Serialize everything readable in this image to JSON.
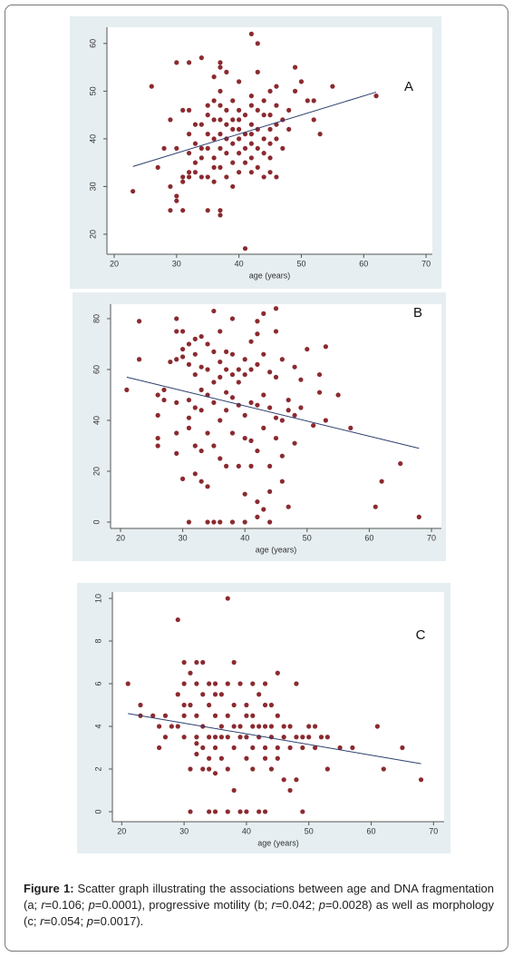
{
  "chart_data": [
    {
      "type": "scatter",
      "annotation": "A",
      "xlabel": "age (years)",
      "color": "#8b2a2f",
      "xlim": [
        18.84,
        71.0
      ],
      "ylim": [
        15.8,
        63.4
      ],
      "xticks": [
        20,
        30,
        40,
        50,
        60,
        70
      ],
      "yticks": [
        20,
        30,
        40,
        50,
        60
      ],
      "x": [
        23,
        26,
        27,
        28,
        29,
        29,
        29,
        30,
        30,
        30,
        30,
        31,
        31,
        31,
        31,
        32,
        32,
        32,
        32,
        32,
        32,
        33,
        33,
        33,
        33,
        34,
        34,
        34,
        34,
        34,
        35,
        35,
        35,
        35,
        35,
        35,
        36,
        36,
        36,
        36,
        36,
        36,
        36,
        37,
        37,
        37,
        37,
        37,
        37,
        37,
        37,
        37,
        37,
        38,
        38,
        38,
        38,
        38,
        38,
        39,
        39,
        39,
        39,
        39,
        39,
        40,
        40,
        40,
        40,
        40,
        40,
        40,
        41,
        41,
        41,
        41,
        41,
        42,
        42,
        42,
        42,
        42,
        42,
        42,
        42,
        43,
        43,
        43,
        43,
        43,
        43,
        44,
        44,
        44,
        44,
        44,
        45,
        45,
        45,
        45,
        45,
        45,
        46,
        46,
        46,
        46,
        46,
        47,
        47,
        48,
        48,
        49,
        49,
        50,
        51,
        52,
        52,
        53,
        55,
        62
      ],
      "values": [
        29,
        51,
        34,
        38,
        44,
        25,
        30,
        56,
        38,
        28,
        27,
        46,
        32,
        31,
        25,
        56,
        46,
        41,
        37,
        33,
        32,
        43,
        39,
        35,
        33,
        57,
        43,
        38,
        36,
        32,
        47,
        45,
        41,
        38,
        32,
        25,
        53,
        48,
        44,
        40,
        36,
        34,
        31,
        56,
        55,
        50,
        47,
        44,
        41,
        38,
        34,
        25,
        24,
        54,
        46,
        43,
        40,
        37,
        32,
        48,
        44,
        42,
        39,
        35,
        30,
        52,
        46,
        44,
        42,
        40,
        37,
        33,
        45,
        41,
        38,
        35,
        17,
        62,
        49,
        47,
        43,
        41,
        39,
        36,
        33,
        60,
        54,
        46,
        42,
        38,
        34,
        48,
        45,
        40,
        37,
        32,
        50,
        45,
        42,
        39,
        36,
        33,
        51,
        47,
        43,
        40,
        32,
        44,
        38,
        46,
        42,
        55,
        50,
        52,
        48,
        44,
        48,
        41,
        51,
        49
      ],
      "fit_line": {
        "x": [
          23,
          62
        ],
        "values": [
          34.2,
          49.8
        ],
        "color": "#2d3f6e"
      }
    },
    {
      "type": "scatter",
      "annotation": "B",
      "xlabel": "age (years)",
      "color": "#8b2a2f",
      "xlim": [
        18.4,
        71.6
      ],
      "ylim": [
        -2.5,
        85.7
      ],
      "xticks": [
        20,
        30,
        40,
        50,
        60,
        70
      ],
      "yticks": [
        0,
        20,
        40,
        60,
        80
      ],
      "x": [
        21,
        23,
        23,
        26,
        26,
        26,
        26,
        27,
        27,
        28,
        29,
        29,
        29,
        29,
        29,
        29,
        30,
        30,
        30,
        30,
        31,
        31,
        31,
        31,
        31,
        31,
        32,
        32,
        32,
        32,
        32,
        32,
        33,
        33,
        33,
        33,
        33,
        33,
        34,
        34,
        34,
        34,
        34,
        34,
        35,
        35,
        35,
        35,
        35,
        35,
        36,
        36,
        36,
        36,
        36,
        36,
        37,
        37,
        37,
        37,
        37,
        38,
        38,
        38,
        38,
        38,
        38,
        39,
        39,
        39,
        39,
        40,
        40,
        40,
        40,
        40,
        40,
        41,
        41,
        41,
        41,
        41,
        42,
        42,
        42,
        42,
        42,
        42,
        42,
        43,
        43,
        43,
        43,
        43,
        44,
        44,
        44,
        44,
        44,
        45,
        45,
        45,
        45,
        45,
        46,
        46,
        46,
        46,
        47,
        47,
        47,
        48,
        48,
        48,
        49,
        49,
        50,
        51,
        52,
        52,
        53,
        53,
        55,
        57,
        61,
        62,
        65,
        68
      ],
      "values": [
        52,
        79,
        64,
        50,
        42,
        33,
        30,
        48,
        52,
        63,
        64,
        80,
        75,
        47,
        35,
        27,
        75,
        68,
        65,
        17,
        70,
        62,
        48,
        41,
        37,
        0,
        72,
        66,
        58,
        45,
        30,
        19,
        73,
        61,
        52,
        44,
        28,
        16,
        70,
        60,
        50,
        35,
        0,
        14,
        83,
        67,
        55,
        47,
        30,
        0,
        75,
        63,
        57,
        40,
        25,
        0,
        67,
        60,
        51,
        44,
        22,
        80,
        66,
        58,
        49,
        35,
        0,
        60,
        55,
        46,
        22,
        64,
        58,
        42,
        33,
        11,
        0,
        71,
        60,
        47,
        32,
        22,
        79,
        74,
        62,
        46,
        28,
        8,
        2,
        82,
        66,
        50,
        37,
        5,
        59,
        45,
        22,
        12,
        0,
        84,
        75,
        57,
        41,
        33,
        64,
        40,
        26,
        16,
        48,
        44,
        6,
        61,
        42,
        31,
        56,
        45,
        68,
        38,
        58,
        51,
        69,
        40,
        50,
        37,
        6,
        16,
        23,
        2
      ],
      "fit_line": {
        "x": [
          21,
          68
        ],
        "values": [
          57,
          29
        ],
        "color": "#2d3f6e"
      }
    },
    {
      "type": "scatter",
      "annotation": "C",
      "xlabel": "age (years)",
      "color": "#8b2a2f",
      "xlim": [
        18.5,
        71.7
      ],
      "ylim": [
        -0.47,
        10.3
      ],
      "xticks": [
        20,
        30,
        40,
        50,
        60,
        70
      ],
      "yticks": [
        0,
        2,
        4,
        6,
        8,
        10
      ],
      "x": [
        21,
        23,
        23,
        25,
        26,
        26,
        27,
        27,
        28,
        29,
        29,
        29,
        30,
        30,
        30,
        30,
        30,
        31,
        31,
        31,
        31,
        32,
        32,
        32,
        32,
        32,
        32,
        33,
        33,
        33,
        33,
        33,
        34,
        34,
        34,
        34,
        34,
        34,
        35,
        35,
        35,
        35,
        35,
        35,
        35,
        36,
        36,
        36,
        36,
        37,
        37,
        37,
        37,
        37,
        37,
        38,
        38,
        38,
        38,
        38,
        39,
        39,
        39,
        39,
        40,
        40,
        40,
        40,
        40,
        41,
        41,
        41,
        41,
        41,
        42,
        42,
        42,
        42,
        43,
        43,
        43,
        43,
        43,
        43,
        44,
        44,
        44,
        44,
        45,
        45,
        45,
        45,
        46,
        46,
        46,
        47,
        47,
        47,
        48,
        48,
        48,
        49,
        49,
        49,
        50,
        50,
        51,
        51,
        52,
        53,
        53,
        55,
        57,
        61,
        62,
        65,
        68
      ],
      "values": [
        6,
        5,
        4.5,
        4.5,
        4,
        3,
        4.5,
        3.5,
        4,
        9,
        5.5,
        4,
        7,
        6,
        5,
        4.5,
        3.5,
        6.5,
        5,
        2,
        0,
        7,
        6,
        4.5,
        3.5,
        2.7,
        3.2,
        7,
        5.5,
        4,
        3,
        2,
        6,
        5,
        3.5,
        2.5,
        2,
        0,
        6,
        5.5,
        4.5,
        3.5,
        3,
        1.8,
        0,
        5.5,
        4,
        3.5,
        2.5,
        10,
        6,
        4.5,
        3.5,
        2,
        0,
        7,
        5,
        4,
        3,
        1,
        6,
        4,
        3.5,
        0,
        5,
        4.5,
        3.5,
        2.5,
        0,
        6,
        4.5,
        4,
        3,
        2,
        5.5,
        4,
        3.5,
        0,
        6,
        5,
        4,
        3,
        2.5,
        0,
        5,
        4,
        3.5,
        2,
        6.5,
        4.5,
        3,
        2.5,
        4,
        3.5,
        1.5,
        4,
        3,
        1,
        6,
        3.5,
        1.5,
        3.5,
        3,
        0,
        4,
        3.5,
        4,
        3,
        3.5,
        3.5,
        2,
        3,
        3,
        4,
        2,
        3,
        1.5
      ],
      "fit_line": {
        "x": [
          21,
          68
        ],
        "values": [
          4.6,
          2.25
        ],
        "color": "#2d3f6e"
      }
    }
  ],
  "caption": {
    "label": "Figure 1:",
    "segments": [
      {
        "text": "Scatter graph illustrating the associations between age and DNA fragmentation (a; ",
        "italic": false
      },
      {
        "text": "r",
        "italic": true
      },
      {
        "text": "=0.106; ",
        "italic": false
      },
      {
        "text": "p",
        "italic": true
      },
      {
        "text": "=0.0001), progressive motility (b; ",
        "italic": false
      },
      {
        "text": "r",
        "italic": true
      },
      {
        "text": "=0.042; ",
        "italic": false
      },
      {
        "text": "p",
        "italic": true
      },
      {
        "text": "=0.0028) as well as morphology (c; ",
        "italic": false
      },
      {
        "text": "r",
        "italic": true
      },
      {
        "text": "=0.054; ",
        "italic": false
      },
      {
        "text": "p",
        "italic": true
      },
      {
        "text": "=0.0017).",
        "italic": false
      }
    ]
  }
}
